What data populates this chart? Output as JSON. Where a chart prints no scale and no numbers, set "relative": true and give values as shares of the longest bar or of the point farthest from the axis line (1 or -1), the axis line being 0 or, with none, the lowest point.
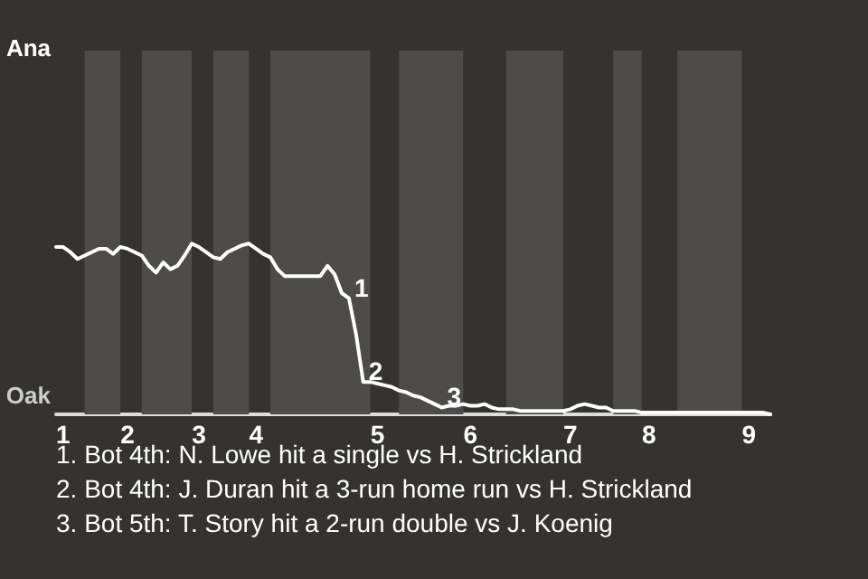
{
  "chart_data": {
    "type": "line",
    "relative": true,
    "categories": [
      null,
      "1",
      null,
      null,
      null,
      null,
      null,
      null,
      null,
      null,
      "2",
      null,
      null,
      null,
      null,
      null,
      null,
      null,
      null,
      null,
      "3",
      null,
      null,
      null,
      null,
      null,
      null,
      null,
      "4",
      null,
      null,
      null,
      null,
      null,
      null,
      null,
      null,
      null,
      null,
      null,
      null,
      null,
      null,
      null,
      null,
      "5",
      null,
      null,
      null,
      null,
      null,
      null,
      null,
      null,
      null,
      null,
      null,
      null,
      "6",
      null,
      null,
      null,
      null,
      null,
      null,
      null,
      null,
      null,
      null,
      null,
      null,
      null,
      "7",
      null,
      null,
      null,
      null,
      null,
      null,
      null,
      null,
      null,
      null,
      "8",
      null,
      null,
      null,
      null,
      null,
      null,
      null,
      null,
      null,
      null,
      null,
      null,
      null,
      "9",
      null,
      null,
      null
    ],
    "series": [
      {
        "color": "#ffffff",
        "values": [
          0.98,
          0.98,
          0.95,
          0.91,
          0.93,
          0.95,
          0.97,
          0.97,
          0.94,
          0.98,
          0.97,
          0.95,
          0.93,
          0.87,
          0.83,
          0.89,
          0.85,
          0.87,
          0.93,
          1,
          0.98,
          0.95,
          0.92,
          0.91,
          0.95,
          0.97,
          0.99,
          1,
          0.97,
          0.94,
          0.92,
          0.85,
          0.81,
          0.81,
          0.81,
          0.81,
          0.81,
          0.81,
          0.87,
          0.82,
          0.71,
          0.68,
          0.47,
          0.19,
          0.19,
          0.18,
          0.17,
          0.16,
          0.14,
          0.13,
          0.11,
          0.1,
          0.08,
          0.06,
          0.04,
          0.05,
          0.05,
          0.06,
          0.05,
          0.05,
          0.06,
          0.04,
          0.03,
          0.03,
          0.03,
          0.02,
          0.02,
          0.02,
          0.02,
          0.02,
          0.02,
          0.02,
          0.03,
          0.05,
          0.06,
          0.05,
          0.04,
          0.04,
          0.02,
          0.02,
          0.02,
          0.02,
          0.01,
          0.01,
          0.01,
          0.01,
          0.01,
          0.01,
          0.01,
          0.01,
          0.01,
          0.01,
          0.01,
          0.01,
          0.01,
          0.01,
          0.01,
          0.01,
          0.01,
          0.01,
          0
        ]
      }
    ],
    "marker": "none",
    "line_style": "solid",
    "annotations": [
      "Ana",
      "Oak",
      "1",
      "2",
      "3",
      "1. Bot 4th: N. Lowe hit a single vs H. Strickland",
      "2. Bot 4th: J. Duran hit a 3-run home run vs H. Strickland",
      "3. Bot 5th: T. Story hit a 2-run double vs J. Koenig"
    ]
  }
}
